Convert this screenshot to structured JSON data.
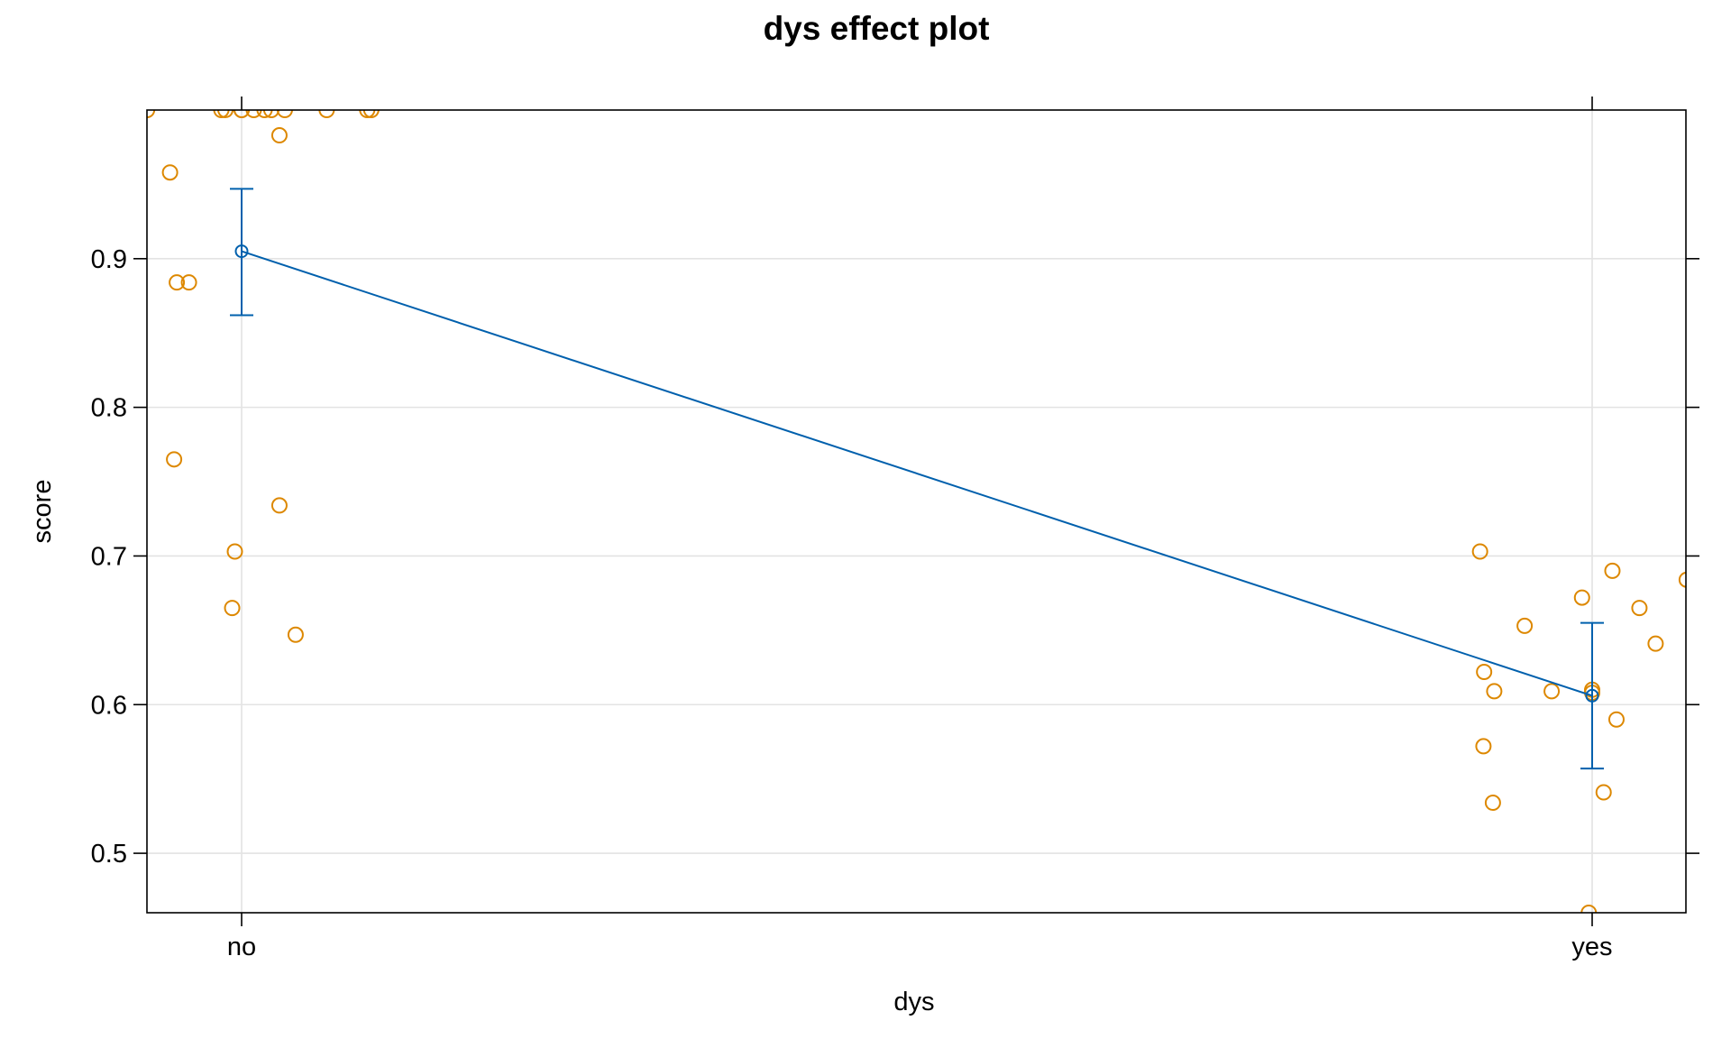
{
  "chart_data": {
    "type": "scatter",
    "title": "dys effect plot",
    "xlabel": "dys",
    "ylabel": "score",
    "categories": [
      "no",
      "yes"
    ],
    "ylim": [
      0.46,
      1.0
    ],
    "yticks": [
      "0.5",
      "0.6",
      "0.7",
      "0.8",
      "0.9"
    ],
    "grid": true,
    "effect": {
      "name": "fit",
      "values": [
        0.905,
        0.606
      ],
      "lower": [
        0.862,
        0.557
      ],
      "upper": [
        0.947,
        0.655
      ]
    },
    "residual_points": [
      {
        "x": -0.07,
        "y": 1.0
      },
      {
        "x": -0.015,
        "y": 1.0
      },
      {
        "x": -0.012,
        "y": 1.0
      },
      {
        "x": 0.0,
        "y": 1.0
      },
      {
        "x": 0.0,
        "y": 1.0
      },
      {
        "x": 0.009,
        "y": 1.0
      },
      {
        "x": 0.017,
        "y": 1.0
      },
      {
        "x": 0.022,
        "y": 1.0
      },
      {
        "x": 0.032,
        "y": 1.0
      },
      {
        "x": 0.063,
        "y": 1.0
      },
      {
        "x": 0.093,
        "y": 1.0
      },
      {
        "x": 0.096,
        "y": 1.0
      },
      {
        "x": 0.028,
        "y": 0.983
      },
      {
        "x": -0.053,
        "y": 0.958
      },
      {
        "x": -0.048,
        "y": 0.884
      },
      {
        "x": -0.039,
        "y": 0.884
      },
      {
        "x": -0.05,
        "y": 0.765
      },
      {
        "x": 0.028,
        "y": 0.734
      },
      {
        "x": -0.005,
        "y": 0.703
      },
      {
        "x": -0.007,
        "y": 0.665
      },
      {
        "x": 0.04,
        "y": 0.647
      },
      {
        "x": 0.917,
        "y": 0.703
      },
      {
        "x": 0.9925,
        "y": 0.672
      },
      {
        "x": 1.015,
        "y": 0.69
      },
      {
        "x": 1.035,
        "y": 0.665
      },
      {
        "x": 0.95,
        "y": 0.653
      },
      {
        "x": 1.047,
        "y": 0.641
      },
      {
        "x": 1.07,
        "y": 0.684
      },
      {
        "x": 0.92,
        "y": 0.622
      },
      {
        "x": 0.9275,
        "y": 0.609
      },
      {
        "x": 0.97,
        "y": 0.609
      },
      {
        "x": 1.0,
        "y": 0.61
      },
      {
        "x": 1.0,
        "y": 0.608
      },
      {
        "x": 1.018,
        "y": 0.59
      },
      {
        "x": 0.9195,
        "y": 0.572
      },
      {
        "x": 1.0085,
        "y": 0.541
      },
      {
        "x": 0.9265,
        "y": 0.534
      },
      {
        "x": 0.9975,
        "y": 0.46
      }
    ],
    "colors": {
      "fit": "#0060ad",
      "points": "#dd8800"
    }
  }
}
